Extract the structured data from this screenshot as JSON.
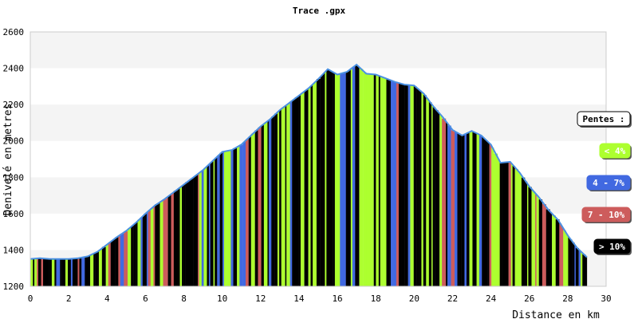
{
  "chart_data": {
    "type": "area",
    "title": "Trace .gpx",
    "xlabel": "Distance en km",
    "ylabel": "Denivelé en metres",
    "xlim": [
      0,
      30
    ],
    "ylim": [
      1200,
      2600
    ],
    "x_ticks": [
      "0",
      "2",
      "4",
      "6",
      "8",
      "10",
      "12",
      "14",
      "16",
      "18",
      "20",
      "22",
      "24",
      "26",
      "28",
      "30"
    ],
    "y_ticks": [
      "1200",
      "1400",
      "1600",
      "1800",
      "2000",
      "2200",
      "2400",
      "2600"
    ],
    "grid": "horizontal bands",
    "legend_placement": "right",
    "line_color": "#4a90e2",
    "profile": {
      "x": [
        0,
        0.5,
        1,
        1.5,
        2,
        2.5,
        3,
        3.5,
        4,
        4.5,
        5,
        5.5,
        6,
        6.5,
        7,
        7.5,
        8,
        8.5,
        9,
        9.5,
        10,
        10.5,
        11,
        11.5,
        12,
        12.5,
        13,
        13.5,
        14,
        14.5,
        15,
        15.5,
        16,
        16.5,
        17,
        17.5,
        18,
        18.5,
        19,
        19.5,
        20,
        20.5,
        21,
        21.5,
        22,
        22.5,
        23,
        23.5,
        24,
        24.5,
        25,
        25.5,
        26,
        26.5,
        27,
        27.5,
        28,
        28.5,
        29
      ],
      "y": [
        1350,
        1355,
        1350,
        1350,
        1350,
        1355,
        1365,
        1390,
        1430,
        1470,
        1505,
        1550,
        1600,
        1645,
        1680,
        1720,
        1760,
        1800,
        1840,
        1890,
        1940,
        1950,
        1980,
        2030,
        2080,
        2120,
        2170,
        2210,
        2250,
        2290,
        2340,
        2395,
        2365,
        2380,
        2420,
        2370,
        2365,
        2345,
        2325,
        2310,
        2305,
        2260,
        2190,
        2130,
        2060,
        2030,
        2055,
        2030,
        1980,
        1880,
        1885,
        1825,
        1750,
        1690,
        1620,
        1565,
        1480,
        1410,
        1360
      ]
    },
    "pentes": {
      "title": "Pentes :",
      "items": [
        {
          "label": "< 4%",
          "color": "#adff2f",
          "text_color": "#ffffff"
        },
        {
          "label": "4 - 7%",
          "color": "#4169e1",
          "text_color": "#ffffff"
        },
        {
          "label": "7 - 10%",
          "color": "#cd5c5c",
          "text_color": "#ffffff"
        },
        {
          "label": "> 10%",
          "color": "#000000",
          "text_color": "#ffffff"
        }
      ]
    }
  }
}
